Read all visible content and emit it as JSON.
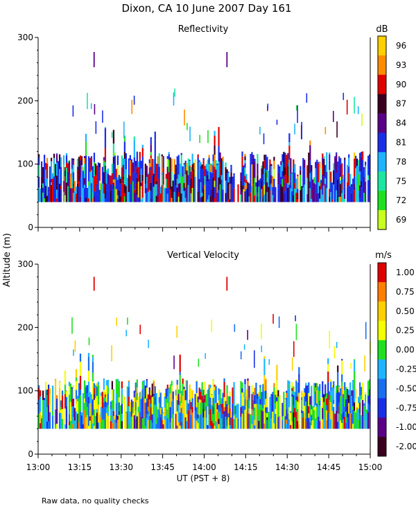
{
  "header": {
    "title": "Dixon, CA 10 June 2007  Day 161"
  },
  "footer": {
    "note": "Raw data, no quality checks"
  },
  "shared_axes": {
    "ylabel": "Altitude (m)",
    "xlabel": "UT  (PST + 8)",
    "x_tick_labels": [
      "13:00",
      "13:15",
      "13:30",
      "13:45",
      "14:00",
      "14:15",
      "14:30",
      "14:45",
      "15:00"
    ],
    "y_tick_labels": [
      "0",
      "100",
      "200",
      "300"
    ]
  },
  "chart_data": [
    {
      "type": "heatmap",
      "title": "Reflectivity",
      "xlabel": "UT  (PST + 8)",
      "ylabel": "Altitude (m)",
      "x_range_minutes": [
        0,
        120
      ],
      "ylim": [
        0,
        300
      ],
      "colorbar": {
        "unit": "dB",
        "tick_labels": [
          "96",
          "93",
          "90",
          "87",
          "84",
          "81",
          "78",
          "75",
          "72",
          "69"
        ],
        "colors": [
          "#ffd000",
          "#ff8c00",
          "#e00000",
          "#3a0020",
          "#5a0088",
          "#1a2ee8",
          "#1eb4ff",
          "#1ee6a0",
          "#20e020",
          "#c8ff20"
        ]
      },
      "data_extent_m": {
        "bottom": 40,
        "typical_top": 120,
        "max_top": 280
      },
      "noted_features": [
        {
          "time": "13:20",
          "altitude_m": 265
        },
        {
          "time": "14:08",
          "altitude_m": 265
        }
      ]
    },
    {
      "type": "heatmap",
      "title": "Vertical Velocity",
      "xlabel": "UT  (PST + 8)",
      "ylabel": "Altitude (m)",
      "x_range_minutes": [
        0,
        120
      ],
      "ylim": [
        0,
        300
      ],
      "colorbar": {
        "unit": "m/s",
        "tick_labels": [
          "1.00",
          "0.75",
          "0.50",
          "0.25",
          "0.00",
          "-0.25",
          "-0.50",
          "-0.75",
          "-1.00",
          "-2.00"
        ],
        "colors": [
          "#e00000",
          "#ff8000",
          "#ffd000",
          "#f5ff00",
          "#20e020",
          "#1eb4ff",
          "#1a6ef0",
          "#1a2ee8",
          "#5a0088",
          "#3a0020"
        ]
      },
      "data_extent_m": {
        "bottom": 40,
        "typical_top": 120,
        "max_top": 280
      },
      "noted_features": [
        {
          "time": "13:20",
          "altitude_m": 270
        },
        {
          "time": "14:08",
          "altitude_m": 270
        }
      ]
    }
  ]
}
